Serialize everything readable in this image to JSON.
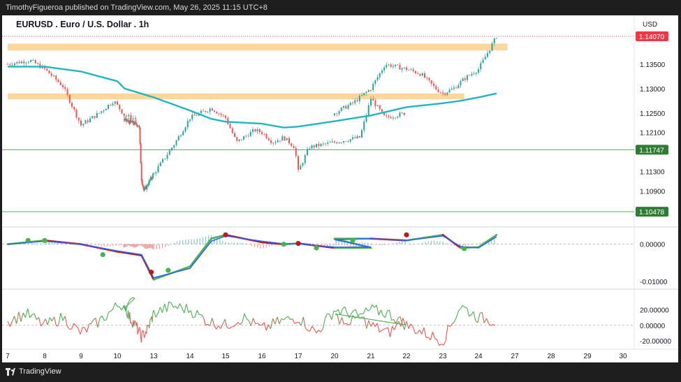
{
  "header": {
    "attribution": "TimothyFigueroa published on TradingView.com, May 26, 2025 11:15 UTC+8"
  },
  "footer": {
    "brand": "TradingView"
  },
  "colors": {
    "frame": "#1e1e1e",
    "up": "#26a69a",
    "down": "#ef5350",
    "zone": "#fbcf8a",
    "ma": "#1fb6bd",
    "level_line": "#4caf50",
    "level_tag": "#2e7d32",
    "price_tag": "#f23645",
    "fast_up": "#4caf50",
    "fast_down": "#b71c1c",
    "slow": "#2962ff",
    "rsi_up": "#4caf50",
    "rsi_down": "#ef5350"
  },
  "chart_data": [
    {
      "type": "candlestick",
      "title": "EURUSD . Euro / U.S. Dollar . 1h",
      "currency": "USD",
      "x_tick_labels": [
        "7",
        "8",
        "9",
        "10",
        "13",
        "14",
        "15",
        "16",
        "17",
        "20",
        "21",
        "22",
        "23",
        "24",
        "27",
        "28",
        "29",
        "30"
      ],
      "y_tick_labels": [
        "1.13500",
        "1.13000",
        "1.12500",
        "1.12100",
        "1.11300",
        "1.10900"
      ],
      "ylim": [
        1.1025,
        1.145
      ],
      "last_price": {
        "label": "1.14070",
        "value": 1.1407
      },
      "levels": [
        {
          "label": "1.11747",
          "value": 1.11747
        },
        {
          "label": "1.10478",
          "value": 1.10478
        }
      ],
      "zones": [
        {
          "low": 1.1378,
          "high": 1.1392,
          "start_day": 7.0,
          "end_day": 24.8
        },
        {
          "low": 1.1278,
          "high": 1.129,
          "start_day": 7.0,
          "end_day": 23.6
        }
      ],
      "moving_average": {
        "x_day": [
          7.0,
          8.0,
          9.0,
          10.0,
          10.6,
          13.0,
          14.0,
          14.6,
          15.0,
          16.0,
          16.6,
          17.0,
          20.0,
          21.0,
          22.0,
          23.0,
          23.5,
          24.0,
          24.5
        ],
        "y": [
          1.1345,
          1.1345,
          1.1335,
          1.1315,
          1.13,
          1.1282,
          1.1255,
          1.1238,
          1.1232,
          1.1228,
          1.122,
          1.1222,
          1.1233,
          1.1245,
          1.1262,
          1.127,
          1.1275,
          1.1282,
          1.129
        ]
      },
      "price_path": {
        "x_day": [
          7.0,
          7.6,
          8.0,
          8.5,
          9.0,
          9.5,
          9.9,
          10.2,
          10.6,
          11.8,
          12.0,
          12.2,
          13.0,
          13.6,
          14.0,
          14.6,
          15.0,
          15.3,
          15.8,
          16.0,
          16.3,
          16.6,
          16.9,
          17.0,
          17.3,
          18.7,
          19.0,
          19.4,
          20.0,
          20.5,
          21.0,
          21.4,
          22.0,
          22.4,
          22.8,
          23.0,
          23.3,
          23.6,
          24.0,
          24.3,
          24.5
        ],
        "y": [
          1.135,
          1.1358,
          1.134,
          1.1305,
          1.1225,
          1.125,
          1.1275,
          1.1245,
          1.1235,
          1.1225,
          1.1115,
          1.109,
          1.1125,
          1.119,
          1.124,
          1.126,
          1.124,
          1.119,
          1.1215,
          1.121,
          1.119,
          1.12,
          1.118,
          1.113,
          1.118,
          1.12,
          1.128,
          1.124,
          1.125,
          1.127,
          1.13,
          1.135,
          1.134,
          1.133,
          1.13,
          1.129,
          1.13,
          1.132,
          1.134,
          1.138,
          1.1407
        ]
      }
    },
    {
      "type": "line",
      "y_tick_labels": [
        "0.00000",
        "-0.01000"
      ],
      "ylim": [
        -0.0115,
        0.0035
      ],
      "x_day": [
        7.0,
        8.0,
        9.0,
        10.0,
        12.0,
        13.0,
        14.0,
        14.6,
        15.0,
        16.0,
        16.6,
        17.0,
        18.0,
        19.0,
        20.0,
        21.0,
        22.0,
        23.0,
        23.5,
        24.0,
        24.5
      ],
      "series": [
        {
          "role": "fast",
          "values": [
            0.0,
            0.001,
            0.0,
            -0.002,
            -0.003,
            -0.0095,
            -0.006,
            0.0015,
            0.0025,
            0.0005,
            0.0,
            0.0002,
            -0.001,
            -0.001,
            0.0015,
            0.0015,
            0.001,
            0.0025,
            -0.001,
            -0.0008,
            0.0025
          ]
        },
        {
          "role": "slow",
          "values": [
            0.0,
            0.0008,
            0.0,
            -0.0018,
            -0.0028,
            -0.009,
            -0.0065,
            0.0008,
            0.0022,
            0.0008,
            0.0001,
            0.0001,
            -0.0008,
            -0.0008,
            0.0012,
            0.0015,
            0.001,
            0.0022,
            -0.0006,
            -0.001,
            0.002
          ]
        }
      ],
      "markers": [
        {
          "x_day": 7.55,
          "value": 0.001,
          "kind": "up"
        },
        {
          "x_day": 8.0,
          "value": 0.001,
          "kind": "up"
        },
        {
          "x_day": 9.6,
          "value": -0.0028,
          "kind": "up"
        },
        {
          "x_day": 12.8,
          "value": -0.0075,
          "kind": "down"
        },
        {
          "x_day": 13.4,
          "value": -0.007,
          "kind": "up"
        },
        {
          "x_day": 15.0,
          "value": 0.0025,
          "kind": "down"
        },
        {
          "x_day": 16.6,
          "value": 0.0,
          "kind": "up"
        },
        {
          "x_day": 17.0,
          "value": 0.0002,
          "kind": "down"
        },
        {
          "x_day": 17.5,
          "value": -0.001,
          "kind": "up"
        },
        {
          "x_day": 20.5,
          "value": 0.001,
          "kind": "up"
        },
        {
          "x_day": 22.0,
          "value": 0.0025,
          "kind": "down"
        },
        {
          "x_day": 23.6,
          "value": -0.0012,
          "kind": "up"
        }
      ]
    },
    {
      "type": "line",
      "y_tick_labels": [
        "20.00000",
        "0.00000",
        "-20.00000"
      ],
      "ylim": [
        -28,
        42
      ],
      "x_day": [
        7.0,
        7.5,
        8.0,
        8.5,
        9.0,
        9.5,
        10.0,
        10.5,
        11.0,
        11.5,
        12.0,
        12.5,
        13.0,
        13.5,
        14.0,
        14.5,
        15.0,
        15.5,
        16.0,
        16.5,
        17.0,
        17.5,
        18.0,
        18.5,
        19.0,
        19.5,
        20.0,
        20.5,
        21.0,
        21.5,
        22.0,
        22.5,
        23.0,
        23.5,
        24.0,
        24.5
      ],
      "values": [
        5,
        15,
        0,
        10,
        -10,
        5,
        25,
        30,
        10,
        0,
        -15,
        -5,
        15,
        25,
        20,
        5,
        0,
        10,
        -5,
        5,
        10,
        -10,
        20,
        15,
        0,
        -10,
        10,
        5,
        20,
        15,
        0,
        -10,
        -20,
        25,
        10,
        5
      ]
    }
  ]
}
